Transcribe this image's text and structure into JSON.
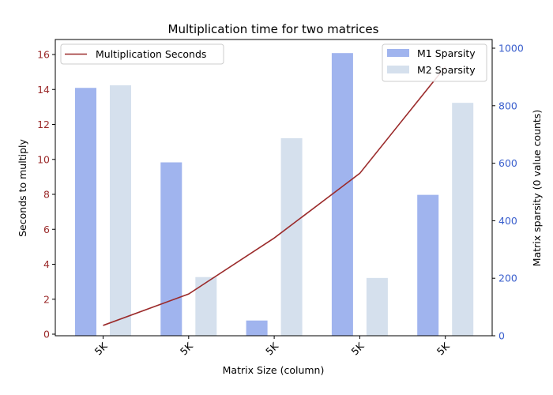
{
  "chart_data": {
    "type": "bar",
    "title": "Multiplication time for two matrices",
    "xlabel": "Matrix Size (column)",
    "ylabel_left": "Seconds to multiply",
    "ylabel_right": "Matrix sparsity (0 value counts)",
    "categories": [
      "5K",
      "5K",
      "5K",
      "5K",
      "5K"
    ],
    "ylim_left": [
      0,
      16
    ],
    "yticks_left": [
      0,
      2,
      4,
      6,
      8,
      10,
      12,
      14,
      16
    ],
    "ylim_right": [
      0,
      1000
    ],
    "yticks_right": [
      0,
      200,
      400,
      600,
      800,
      1000
    ],
    "line_series": {
      "name": "Multiplication Seconds",
      "axis": "left",
      "color": "#9b2b2b",
      "values": [
        0.5,
        2.3,
        5.5,
        9.2,
        15.3
      ]
    },
    "bar_series": [
      {
        "name": "M1 Sparsity",
        "axis": "right",
        "color": "#a0b4ee",
        "values": [
          862,
          603,
          53,
          983,
          490
        ]
      },
      {
        "name": "M2 Sparsity",
        "axis": "right",
        "color": "#d5e0ed",
        "values": [
          871,
          204,
          687,
          201,
          810
        ]
      }
    ],
    "legend_left_placement": "upper-left",
    "legend_right_placement": "upper-right",
    "left_tick_color": "#9b2b2b",
    "right_tick_color": "#3a5fcd",
    "grid": false
  }
}
